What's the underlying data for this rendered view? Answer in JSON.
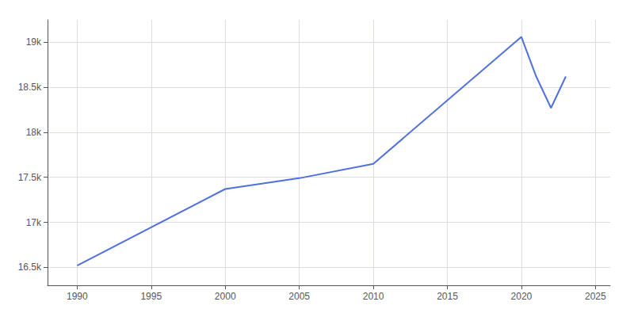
{
  "chart_data": {
    "type": "line",
    "x": [
      1990,
      2000,
      2005,
      2010,
      2020,
      2021,
      2022,
      2023
    ],
    "values": [
      16519,
      17370,
      17490,
      17650,
      19060,
      18620,
      18270,
      18620
    ],
    "xlim": [
      1988,
      2026
    ],
    "xticks": [
      1990,
      1995,
      2000,
      2005,
      2010,
      2015,
      2020,
      2025
    ],
    "ylim": [
      16300,
      19250
    ],
    "yticks": [
      {
        "value": 16500,
        "label": "16.5k"
      },
      {
        "value": 17000,
        "label": "17k"
      },
      {
        "value": 17500,
        "label": "17.5k"
      },
      {
        "value": 18000,
        "label": "18k"
      },
      {
        "value": 18500,
        "label": "18.5k"
      },
      {
        "value": 19000,
        "label": "19k"
      }
    ],
    "grid": true
  }
}
